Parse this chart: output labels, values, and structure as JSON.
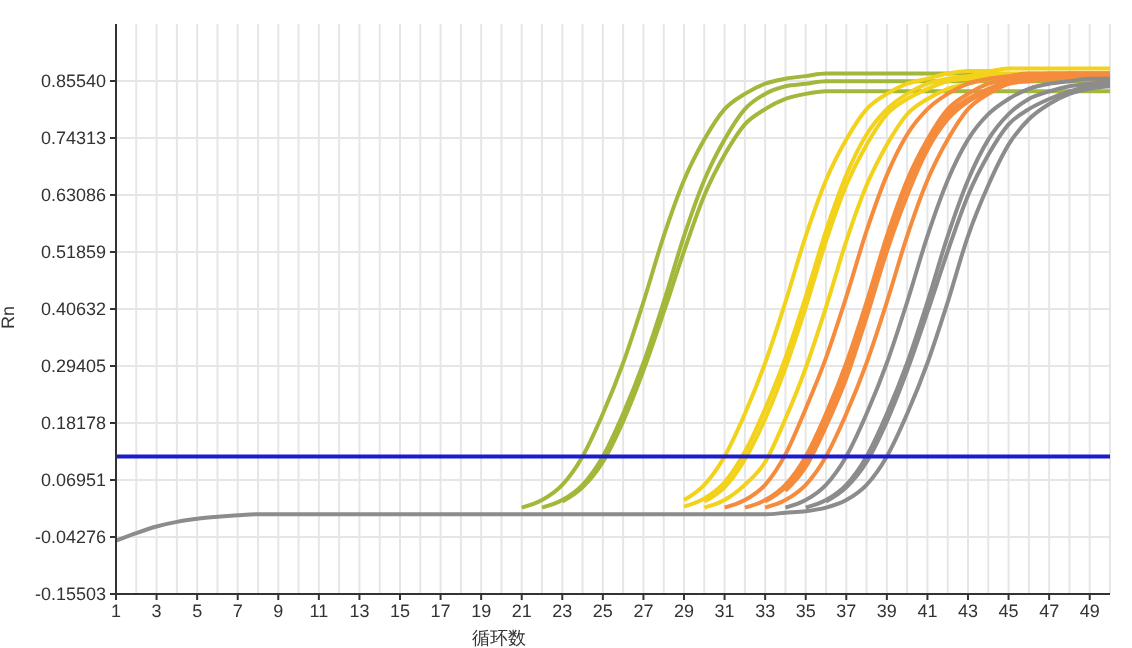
{
  "chart_data": {
    "type": "line",
    "xlabel": "循环数",
    "ylabel": "Rn",
    "x": [
      1,
      2,
      3,
      4,
      5,
      6,
      7,
      8,
      9,
      10,
      11,
      12,
      13,
      14,
      15,
      16,
      17,
      18,
      19,
      20,
      21,
      22,
      23,
      24,
      25,
      26,
      27,
      28,
      29,
      30,
      31,
      32,
      33,
      34,
      35,
      36,
      37,
      38,
      39,
      40,
      41,
      42,
      43,
      44,
      45,
      46,
      47,
      48,
      49,
      50
    ],
    "xlim": [
      1,
      50
    ],
    "xticks": [
      1,
      3,
      5,
      7,
      9,
      11,
      13,
      15,
      17,
      19,
      21,
      23,
      25,
      27,
      29,
      31,
      33,
      35,
      37,
      39,
      41,
      43,
      45,
      47,
      49
    ],
    "ylim": [
      -0.15503,
      0.96767
    ],
    "yticks": [
      -0.15503,
      -0.04276,
      0.06951,
      0.18178,
      0.29405,
      0.40632,
      0.51859,
      0.63086,
      0.74313,
      {
        "value": 0.8554,
        "label": "0.85540"
      }
    ],
    "grid": true,
    "legend": false,
    "marker": "none",
    "line_style": "solid",
    "ref_lines": [
      {
        "axis": "y",
        "value": 0.116,
        "color": "#1c1ccf"
      }
    ],
    "series": [
      {
        "color": "#a3b83a",
        "values": [
          null,
          null,
          null,
          null,
          null,
          null,
          null,
          null,
          null,
          null,
          null,
          null,
          null,
          null,
          null,
          null,
          null,
          null,
          null,
          null,
          0.015,
          0.03,
          0.06,
          0.116,
          0.2,
          0.3,
          0.42,
          0.55,
          0.66,
          0.74,
          0.8,
          0.83,
          0.85,
          0.86,
          0.865,
          0.87,
          0.87,
          0.87,
          0.87,
          0.87,
          0.87,
          0.87,
          0.87,
          0.87,
          null,
          null,
          null,
          null,
          null,
          null
        ]
      },
      {
        "color": "#a3b83a",
        "values": [
          null,
          null,
          null,
          null,
          null,
          null,
          null,
          null,
          null,
          null,
          null,
          null,
          null,
          null,
          null,
          null,
          null,
          null,
          null,
          null,
          null,
          0.015,
          0.03,
          0.06,
          0.116,
          0.2,
          0.3,
          0.42,
          0.55,
          0.66,
          0.74,
          0.8,
          0.83,
          0.845,
          0.85,
          0.855,
          0.855,
          0.855,
          0.855,
          0.855,
          0.855,
          0.855,
          0.855,
          0.855,
          0.855,
          0.855,
          0.855,
          0.855,
          0.855,
          0.855
        ]
      },
      {
        "color": "#a3b83a",
        "values": [
          null,
          null,
          null,
          null,
          null,
          null,
          null,
          null,
          null,
          null,
          null,
          null,
          null,
          null,
          null,
          null,
          null,
          null,
          null,
          null,
          null,
          null,
          0.027,
          0.055,
          0.105,
          0.185,
          0.285,
          0.4,
          0.52,
          0.63,
          0.71,
          0.77,
          0.8,
          0.82,
          0.83,
          0.835,
          0.835,
          0.835,
          0.835,
          0.835,
          0.835,
          0.835,
          0.835,
          0.835,
          0.835,
          0.835,
          0.835,
          0.835,
          0.835,
          0.835
        ]
      },
      {
        "color": "#f2d21b",
        "values": [
          null,
          null,
          null,
          null,
          null,
          null,
          null,
          null,
          null,
          null,
          null,
          null,
          null,
          null,
          null,
          null,
          null,
          null,
          null,
          null,
          null,
          null,
          null,
          null,
          null,
          null,
          null,
          null,
          0.03,
          0.06,
          0.116,
          0.2,
          0.3,
          0.42,
          0.55,
          0.66,
          0.74,
          0.8,
          0.83,
          0.85,
          0.86,
          0.87,
          0.875,
          0.875,
          0.88,
          0.88,
          0.88,
          0.88,
          0.88,
          0.88
        ]
      },
      {
        "color": "#f2d21b",
        "values": [
          null,
          null,
          null,
          null,
          null,
          null,
          null,
          null,
          null,
          null,
          null,
          null,
          null,
          null,
          null,
          null,
          null,
          null,
          null,
          null,
          null,
          null,
          null,
          null,
          null,
          null,
          null,
          null,
          0.017,
          0.033,
          0.065,
          0.125,
          0.21,
          0.31,
          0.43,
          0.56,
          0.67,
          0.75,
          0.8,
          0.83,
          0.85,
          0.86,
          0.865,
          0.87,
          0.87,
          0.87,
          0.87,
          0.87,
          0.87,
          0.87
        ]
      },
      {
        "color": "#f2d21b",
        "values": [
          null,
          null,
          null,
          null,
          null,
          null,
          null,
          null,
          null,
          null,
          null,
          null,
          null,
          null,
          null,
          null,
          null,
          null,
          null,
          null,
          null,
          null,
          null,
          null,
          null,
          null,
          null,
          null,
          null,
          0.027,
          0.055,
          0.11,
          0.19,
          0.29,
          0.41,
          0.54,
          0.65,
          0.73,
          0.79,
          0.82,
          0.84,
          0.855,
          0.86,
          0.865,
          0.865,
          0.865,
          0.865,
          0.865,
          0.865,
          0.865
        ]
      },
      {
        "color": "#f2d21b",
        "values": [
          null,
          null,
          null,
          null,
          null,
          null,
          null,
          null,
          null,
          null,
          null,
          null,
          null,
          null,
          null,
          null,
          null,
          null,
          null,
          null,
          null,
          null,
          null,
          null,
          null,
          null,
          null,
          null,
          null,
          0.015,
          0.03,
          0.06,
          0.105,
          0.19,
          0.29,
          0.41,
          0.54,
          0.65,
          0.73,
          0.79,
          0.82,
          0.84,
          0.85,
          0.86,
          0.865,
          0.865,
          0.865,
          0.865,
          0.865,
          0.865
        ]
      },
      {
        "color": "#f58b3c",
        "values": [
          null,
          null,
          null,
          null,
          null,
          null,
          null,
          null,
          null,
          null,
          null,
          null,
          null,
          null,
          null,
          null,
          null,
          null,
          null,
          null,
          null,
          null,
          null,
          null,
          null,
          null,
          null,
          null,
          null,
          null,
          0.015,
          0.03,
          0.06,
          0.12,
          0.21,
          0.31,
          0.43,
          0.56,
          0.67,
          0.75,
          0.8,
          0.83,
          0.85,
          0.86,
          0.865,
          0.87,
          0.87,
          0.87,
          0.87,
          0.87
        ]
      },
      {
        "color": "#f58b3c",
        "values": [
          null,
          null,
          null,
          null,
          null,
          null,
          null,
          null,
          null,
          null,
          null,
          null,
          null,
          null,
          null,
          null,
          null,
          null,
          null,
          null,
          null,
          null,
          null,
          null,
          null,
          null,
          null,
          null,
          null,
          null,
          null,
          0.015,
          0.03,
          0.06,
          0.116,
          0.2,
          0.3,
          0.42,
          0.55,
          0.66,
          0.74,
          0.8,
          0.83,
          0.85,
          0.86,
          0.865,
          0.87,
          0.87,
          0.87,
          0.87
        ]
      },
      {
        "color": "#f58b3c",
        "values": [
          null,
          null,
          null,
          null,
          null,
          null,
          null,
          null,
          null,
          null,
          null,
          null,
          null,
          null,
          null,
          null,
          null,
          null,
          null,
          null,
          null,
          null,
          null,
          null,
          null,
          null,
          null,
          null,
          null,
          null,
          null,
          null,
          0.027,
          0.055,
          0.105,
          0.19,
          0.29,
          0.41,
          0.54,
          0.65,
          0.73,
          0.79,
          0.82,
          0.84,
          0.855,
          0.86,
          0.865,
          0.865,
          0.865,
          0.865
        ]
      },
      {
        "color": "#f58b3c",
        "values": [
          null,
          null,
          null,
          null,
          null,
          null,
          null,
          null,
          null,
          null,
          null,
          null,
          null,
          null,
          null,
          null,
          null,
          null,
          null,
          null,
          null,
          null,
          null,
          null,
          null,
          null,
          null,
          null,
          null,
          null,
          null,
          null,
          null,
          0.048,
          0.095,
          0.175,
          0.27,
          0.39,
          0.52,
          0.63,
          0.72,
          0.78,
          0.815,
          0.835,
          0.85,
          0.855,
          0.86,
          0.86,
          0.86,
          0.86
        ]
      },
      {
        "color": "#f58b3c",
        "values": [
          null,
          null,
          null,
          null,
          null,
          null,
          null,
          null,
          null,
          null,
          null,
          null,
          null,
          null,
          null,
          null,
          null,
          null,
          null,
          null,
          null,
          null,
          null,
          null,
          null,
          null,
          null,
          null,
          null,
          null,
          null,
          null,
          0.015,
          0.03,
          0.06,
          0.116,
          0.2,
          0.3,
          0.42,
          0.55,
          0.66,
          0.74,
          0.8,
          0.83,
          0.85,
          0.86,
          0.865,
          0.87,
          0.87,
          0.87
        ]
      },
      {
        "color": "#8c8c8c",
        "values": [
          null,
          null,
          null,
          null,
          null,
          null,
          null,
          null,
          null,
          null,
          null,
          null,
          null,
          null,
          null,
          null,
          null,
          null,
          null,
          null,
          null,
          null,
          null,
          null,
          null,
          null,
          null,
          null,
          null,
          null,
          null,
          null,
          null,
          0.015,
          0.03,
          0.06,
          0.116,
          0.2,
          0.3,
          0.42,
          0.55,
          0.66,
          0.74,
          0.79,
          0.82,
          0.84,
          0.85,
          0.855,
          0.86,
          0.86
        ]
      },
      {
        "color": "#8c8c8c",
        "values": [
          null,
          null,
          null,
          null,
          null,
          null,
          null,
          null,
          null,
          null,
          null,
          null,
          null,
          null,
          null,
          null,
          null,
          null,
          null,
          null,
          null,
          null,
          null,
          null,
          null,
          null,
          null,
          null,
          null,
          null,
          null,
          null,
          null,
          null,
          0.015,
          0.03,
          0.06,
          0.116,
          0.2,
          0.3,
          0.42,
          0.55,
          0.66,
          0.74,
          0.79,
          0.82,
          0.835,
          0.845,
          0.85,
          0.855
        ]
      },
      {
        "color": "#8c8c8c",
        "values": [
          null,
          null,
          null,
          null,
          null,
          null,
          null,
          null,
          null,
          null,
          null,
          null,
          null,
          null,
          null,
          null,
          null,
          null,
          null,
          null,
          null,
          null,
          null,
          null,
          null,
          null,
          null,
          null,
          null,
          null,
          null,
          null,
          null,
          null,
          null,
          0.027,
          0.055,
          0.105,
          0.185,
          0.285,
          0.4,
          0.52,
          0.63,
          0.71,
          0.77,
          0.8,
          0.82,
          0.835,
          0.845,
          0.85
        ]
      },
      {
        "color": "#8c8c8c",
        "values": [
          -0.05,
          -0.035,
          -0.022,
          -0.013,
          -0.007,
          -0.003,
          0,
          0.002,
          0.002,
          0.002,
          0.002,
          0.002,
          0.002,
          0.002,
          0.002,
          0.002,
          0.002,
          0.002,
          0.002,
          0.002,
          0.002,
          0.002,
          0.002,
          0.002,
          0.002,
          0.002,
          0.002,
          0.002,
          0.002,
          0.002,
          0.002,
          0.002,
          0.002,
          0.005,
          0.008,
          0.015,
          0.03,
          0.06,
          0.116,
          0.2,
          0.3,
          0.42,
          0.55,
          0.65,
          0.73,
          0.78,
          0.81,
          0.83,
          0.84,
          0.845
        ]
      }
    ]
  }
}
